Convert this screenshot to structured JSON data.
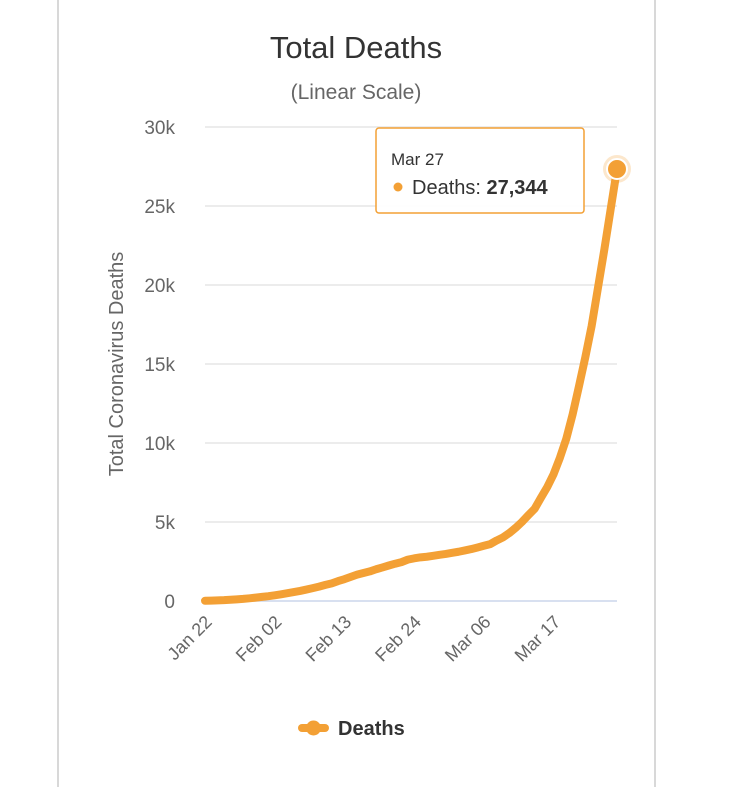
{
  "chart_data": {
    "type": "line",
    "title": "Total Deaths",
    "subtitle": "(Linear Scale)",
    "ylabel": "Total Coronavirus Deaths",
    "xlabel": "",
    "ylim": [
      0,
      30000
    ],
    "yticks": [
      0,
      5000,
      10000,
      15000,
      20000,
      25000,
      30000
    ],
    "ytick_labels": [
      "0",
      "5k",
      "10k",
      "15k",
      "20k",
      "25k",
      "30k"
    ],
    "xtick_labels": [
      "Jan 22",
      "Feb 02",
      "Feb 13",
      "Feb 24",
      "Mar 06",
      "Mar 17"
    ],
    "grid": true,
    "legend": "bottom-center",
    "color": "#f3a035",
    "categories": [
      "Jan 22",
      "Jan 23",
      "Jan 24",
      "Jan 25",
      "Jan 26",
      "Jan 27",
      "Jan 28",
      "Jan 29",
      "Jan 30",
      "Jan 31",
      "Feb 01",
      "Feb 02",
      "Feb 03",
      "Feb 04",
      "Feb 05",
      "Feb 06",
      "Feb 07",
      "Feb 08",
      "Feb 09",
      "Feb 10",
      "Feb 11",
      "Feb 12",
      "Feb 13",
      "Feb 14",
      "Feb 15",
      "Feb 16",
      "Feb 17",
      "Feb 18",
      "Feb 19",
      "Feb 20",
      "Feb 21",
      "Feb 22",
      "Feb 23",
      "Feb 24",
      "Feb 25",
      "Feb 26",
      "Feb 27",
      "Feb 28",
      "Feb 29",
      "Mar 01",
      "Mar 02",
      "Mar 03",
      "Mar 04",
      "Mar 05",
      "Mar 06",
      "Mar 07",
      "Mar 08",
      "Mar 09",
      "Mar 10",
      "Mar 11",
      "Mar 12",
      "Mar 13",
      "Mar 14",
      "Mar 15",
      "Mar 16",
      "Mar 17",
      "Mar 18",
      "Mar 19",
      "Mar 20",
      "Mar 21",
      "Mar 22",
      "Mar 23",
      "Mar 24",
      "Mar 25",
      "Mar 26",
      "Mar 27"
    ],
    "series": [
      {
        "name": "Deaths",
        "values": [
          17,
          25,
          41,
          56,
          80,
          106,
          132,
          170,
          213,
          259,
          304,
          362,
          426,
          492,
          565,
          638,
          724,
          813,
          910,
          1018,
          1115,
          1261,
          1383,
          1526,
          1669,
          1775,
          1873,
          2009,
          2126,
          2247,
          2360,
          2460,
          2618,
          2699,
          2763,
          2800,
          2858,
          2923,
          2977,
          3050,
          3117,
          3202,
          3285,
          3387,
          3494,
          3599,
          3827,
          4025,
          4296,
          4628,
          5000,
          5424,
          5831,
          6532,
          7218,
          8031,
          9073,
          10270,
          11812,
          13593,
          15428,
          17410,
          19826,
          22239,
          24794,
          27344
        ]
      }
    ]
  },
  "tooltip": {
    "date": "Mar 27",
    "series_label": "Deaths: ",
    "value": "27,344"
  },
  "legend": {
    "label": "Deaths"
  }
}
